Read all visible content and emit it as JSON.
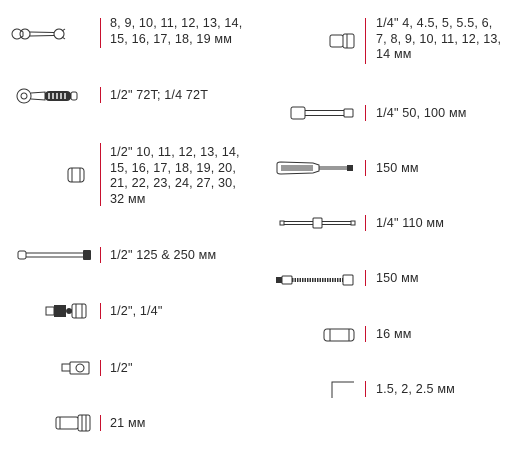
{
  "left_column": [
    {
      "icon": "combination-wrench-icon",
      "lines": [
        "8, 9, 10, 11, 12, 13, 14,",
        "15, 16, 17, 18, 19 мм"
      ]
    },
    {
      "icon": "ratchet-handle-icon",
      "lines": [
        "1/2\" 72T; 1/4 72T"
      ]
    },
    {
      "icon": "socket-icon",
      "lines": [
        "1/2\" 10, 11, 12, 13, 14,",
        "15, 16, 17, 18, 19, 20,",
        "21, 22, 23, 24, 27, 30,",
        "32 мм"
      ]
    },
    {
      "icon": "extension-bar-icon",
      "lines": [
        "1/2\" 125 & 250 мм"
      ]
    },
    {
      "icon": "universal-joint-icon",
      "lines": [
        "1/2\", 1/4\""
      ]
    },
    {
      "icon": "adapter-icon",
      "lines": [
        "1/2\""
      ]
    },
    {
      "icon": "spark-plug-socket-icon",
      "lines": [
        "21 мм"
      ]
    }
  ],
  "right_column": [
    {
      "icon": "small-socket-icon",
      "lines": [
        "1/4\"  4, 4.5, 5, 5.5, 6,",
        "7, 8, 9, 10, 11, 12, 13,",
        "14 мм"
      ]
    },
    {
      "icon": "extension-bar-icon",
      "lines": [
        "1/4\" 50, 100 мм"
      ]
    },
    {
      "icon": "spinner-handle-icon",
      "lines": [
        "150 мм"
      ]
    },
    {
      "icon": "sliding-t-bar-icon",
      "lines": [
        "1/4\" 110 мм"
      ]
    },
    {
      "icon": "flexible-extension-icon",
      "lines": [
        "150 мм"
      ]
    },
    {
      "icon": "deep-socket-icon",
      "lines": [
        "16 мм"
      ]
    },
    {
      "icon": "hex-key-icon",
      "lines": [
        "1.5, 2, 2.5 мм"
      ]
    }
  ],
  "colors": {
    "accent_bar": "#c8102e",
    "text": "#2b2b2b",
    "line_art": "#333333"
  }
}
